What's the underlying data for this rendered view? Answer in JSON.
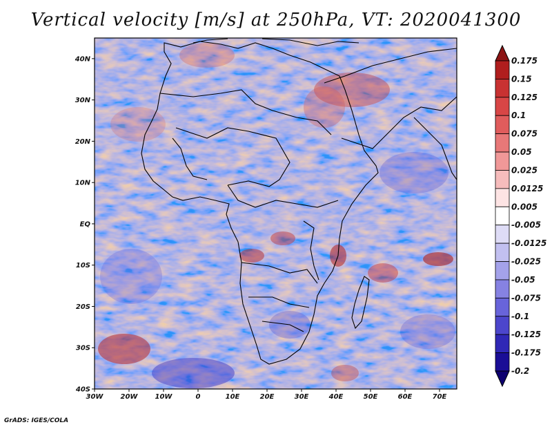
{
  "title": "Vertical velocity [m/s] at 250hPa, VT: 2020041300",
  "credit": "GrADS: IGES/COLA",
  "map": {
    "lon_range": [
      -30,
      75
    ],
    "lat_range": [
      -40,
      45
    ],
    "lat_ticks": [
      "40N",
      "30N",
      "20N",
      "10N",
      "EQ",
      "10S",
      "20S",
      "30S",
      "40S"
    ],
    "lon_ticks": [
      "30W",
      "20W",
      "10W",
      "0",
      "10E",
      "20E",
      "30E",
      "40E",
      "50E",
      "60E",
      "70E"
    ]
  },
  "colorbar": {
    "labels": [
      "0.175",
      "0.15",
      "0.125",
      "0.1",
      "0.075",
      "0.05",
      "0.025",
      "0.0125",
      "0.005",
      "-0.005",
      "-0.0125",
      "-0.025",
      "-0.05",
      "-0.075",
      "-0.1",
      "-0.125",
      "-0.175",
      "-0.2"
    ],
    "colors": [
      "#8c1414",
      "#b01e1e",
      "#c83232",
      "#d84646",
      "#e05c5c",
      "#e87878",
      "#f09898",
      "#f6bcbc",
      "#fde4e4",
      "#ffffff",
      "#dedcf6",
      "#c2c0f0",
      "#a4a2ea",
      "#8682e2",
      "#6864da",
      "#4c46cc",
      "#3028b6",
      "#1a0e96",
      "#0e0070"
    ]
  }
}
